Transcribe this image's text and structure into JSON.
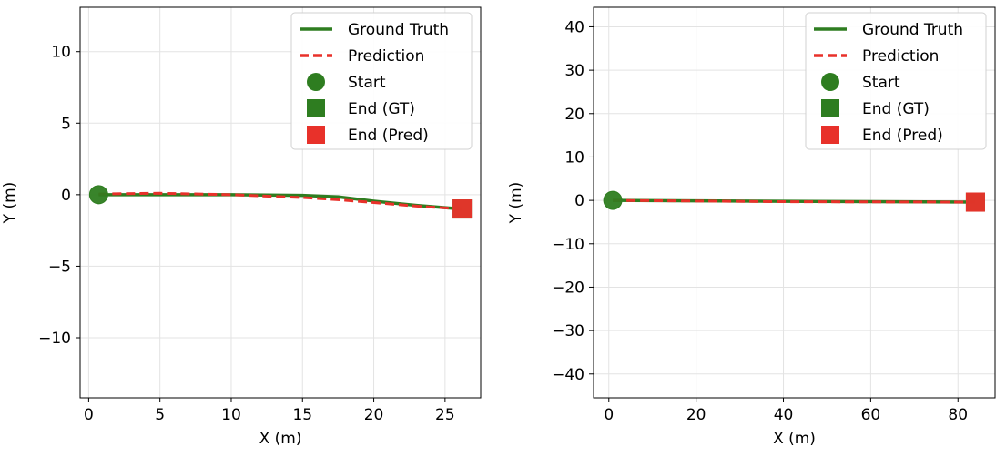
{
  "chart_data": [
    {
      "type": "line",
      "xlabel": "X (m)",
      "ylabel": "Y (m)",
      "xlim": [
        -0.6,
        27.5
      ],
      "ylim": [
        -14.2,
        13.1
      ],
      "xticks": [
        0,
        5,
        10,
        15,
        20,
        25
      ],
      "xtick_labels": [
        "0",
        "5",
        "10",
        "15",
        "20",
        "25"
      ],
      "yticks": [
        10,
        5,
        0,
        -5,
        -10
      ],
      "ytick_labels": [
        "10",
        "5",
        "0",
        "−5",
        "−10"
      ],
      "grid": true,
      "legend_position": "top-right",
      "series": [
        {
          "name": "Ground Truth",
          "style": "solid",
          "color": "#2e7d20",
          "x": [
            0.7,
            5,
            10,
            15,
            17.5,
            20,
            23,
            26.2
          ],
          "y": [
            0.0,
            0.0,
            0.0,
            -0.05,
            -0.15,
            -0.45,
            -0.75,
            -1.0
          ]
        },
        {
          "name": "Prediction",
          "style": "dashed",
          "color": "#e8312a",
          "x": [
            0.7,
            5,
            10,
            15,
            17.5,
            20,
            23,
            26.2
          ],
          "y": [
            0.05,
            0.1,
            0.0,
            -0.2,
            -0.35,
            -0.55,
            -0.8,
            -1.0
          ]
        }
      ],
      "markers": [
        {
          "name": "Start",
          "shape": "circle",
          "color": "#2e7d20",
          "x": 0.7,
          "y": 0.0
        },
        {
          "name": "End (GT)",
          "shape": "square",
          "color": "#2e7d20",
          "x": 26.2,
          "y": -1.0
        },
        {
          "name": "End (Pred)",
          "shape": "square",
          "color": "#e8312a",
          "x": 26.2,
          "y": -1.0
        }
      ]
    },
    {
      "type": "line",
      "xlabel": "X (m)",
      "ylabel": "Y (m)",
      "xlim": [
        -3.5,
        88.5
      ],
      "ylim": [
        -45.5,
        44.5
      ],
      "xticks": [
        0,
        20,
        40,
        60,
        80
      ],
      "xtick_labels": [
        "0",
        "20",
        "40",
        "60",
        "80"
      ],
      "yticks": [
        40,
        30,
        20,
        10,
        0,
        -10,
        -20,
        -30,
        -40
      ],
      "ytick_labels": [
        "40",
        "30",
        "20",
        "10",
        "0",
        "−10",
        "−20",
        "−30",
        "−40"
      ],
      "grid": true,
      "legend_position": "top-right",
      "series": [
        {
          "name": "Ground Truth",
          "style": "solid",
          "color": "#2e7d20",
          "x": [
            0.9,
            20,
            40,
            60,
            84.0
          ],
          "y": [
            0.0,
            -0.1,
            -0.2,
            -0.3,
            -0.4
          ]
        },
        {
          "name": "Prediction",
          "style": "dashed",
          "color": "#e8312a",
          "x": [
            0.9,
            20,
            40,
            60,
            84.0
          ],
          "y": [
            0.0,
            -0.15,
            -0.3,
            -0.35,
            -0.4
          ]
        }
      ],
      "markers": [
        {
          "name": "Start",
          "shape": "circle",
          "color": "#2e7d20",
          "x": 0.9,
          "y": 0.0
        },
        {
          "name": "End (GT)",
          "shape": "square",
          "color": "#2e7d20",
          "x": 84.0,
          "y": -0.4
        },
        {
          "name": "End (Pred)",
          "shape": "square",
          "color": "#e8312a",
          "x": 84.0,
          "y": -0.4
        }
      ]
    }
  ]
}
